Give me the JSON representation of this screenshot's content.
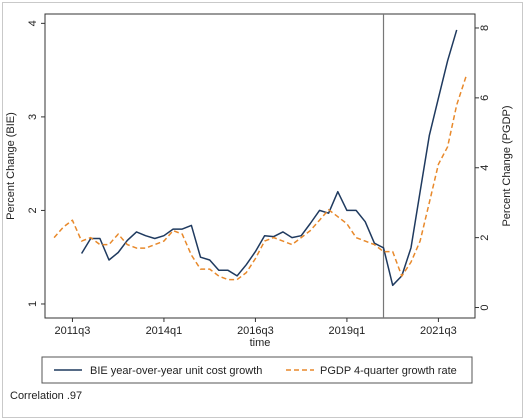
{
  "chart_data": {
    "type": "line",
    "xlabel": "time",
    "ylabel_left": "Percent Change (BIE)",
    "ylabel_right": "Percent Change (PGDP)",
    "x_ticks": [
      "2011q3",
      "2014q1",
      "2016q3",
      "2019q1",
      "2021q3"
    ],
    "y_left_ticks": [
      1,
      2,
      3,
      4
    ],
    "y_right_ticks": [
      0,
      2,
      4,
      6,
      8
    ],
    "ylim_left": [
      0.85,
      4.1
    ],
    "ylim_right": [
      -0.3,
      8.4
    ],
    "vertical_line_at": "2020q1",
    "grid": false,
    "legend_position": "bottom",
    "series": [
      {
        "name": "BIE year-over-year unit cost growth",
        "axis": "left",
        "color": "#1f3a5f",
        "style": "solid",
        "x": [
          "2011q4",
          "2012q1",
          "2012q2",
          "2012q3",
          "2012q4",
          "2013q1",
          "2013q2",
          "2013q3",
          "2013q4",
          "2014q1",
          "2014q2",
          "2014q3",
          "2014q4",
          "2015q1",
          "2015q2",
          "2015q3",
          "2015q4",
          "2016q1",
          "2016q2",
          "2016q3",
          "2016q4",
          "2017q1",
          "2017q2",
          "2017q3",
          "2017q4",
          "2018q1",
          "2018q2",
          "2018q3",
          "2018q4",
          "2019q1",
          "2019q2",
          "2019q3",
          "2019q4",
          "2020q1",
          "2020q2",
          "2020q3",
          "2020q4",
          "2021q1",
          "2021q2",
          "2021q3",
          "2021q4",
          "2022q1",
          "2022q2"
        ],
        "values": [
          1.54,
          1.7,
          1.7,
          1.47,
          1.55,
          1.68,
          1.77,
          1.73,
          1.7,
          1.73,
          1.8,
          1.8,
          1.84,
          1.5,
          1.47,
          1.36,
          1.36,
          1.3,
          1.42,
          1.56,
          1.73,
          1.72,
          1.77,
          1.71,
          1.73,
          1.86,
          2.0,
          1.97,
          2.2,
          2.0,
          2.0,
          1.88,
          1.65,
          1.6,
          1.2,
          1.3,
          1.6,
          2.2,
          2.8,
          3.2,
          3.6,
          3.93,
          null
        ]
      },
      {
        "name": "PGDP 4-quarter growth rate",
        "axis": "right",
        "color": "#e8892b",
        "style": "dashed",
        "x": [
          "2011q1",
          "2011q2",
          "2011q3",
          "2011q4",
          "2012q1",
          "2012q2",
          "2012q3",
          "2012q4",
          "2013q1",
          "2013q2",
          "2013q3",
          "2013q4",
          "2014q1",
          "2014q2",
          "2014q3",
          "2014q4",
          "2015q1",
          "2015q2",
          "2015q3",
          "2015q4",
          "2016q1",
          "2016q2",
          "2016q3",
          "2016q4",
          "2017q1",
          "2017q2",
          "2017q3",
          "2017q4",
          "2018q1",
          "2018q2",
          "2018q3",
          "2018q4",
          "2019q1",
          "2019q2",
          "2019q3",
          "2019q4",
          "2020q1",
          "2020q2",
          "2020q3",
          "2020q4",
          "2021q1",
          "2021q2",
          "2021q3",
          "2021q4",
          "2022q1",
          "2022q2"
        ],
        "values": [
          2.0,
          2.3,
          2.5,
          1.9,
          2.0,
          1.8,
          1.8,
          2.1,
          1.8,
          1.7,
          1.7,
          1.8,
          1.9,
          2.2,
          2.1,
          1.5,
          1.1,
          1.1,
          0.9,
          0.8,
          0.8,
          1.0,
          1.4,
          1.9,
          2.0,
          1.9,
          1.8,
          2.0,
          2.2,
          2.5,
          2.8,
          2.6,
          2.4,
          2.0,
          1.9,
          1.8,
          1.6,
          1.6,
          0.9,
          1.3,
          1.9,
          3.0,
          4.1,
          4.6,
          5.8,
          6.6
        ]
      }
    ],
    "note": "Correlation .97"
  },
  "colors": {
    "axis": "#333333",
    "vline": "#777777",
    "frame": "#c9c9c9"
  }
}
